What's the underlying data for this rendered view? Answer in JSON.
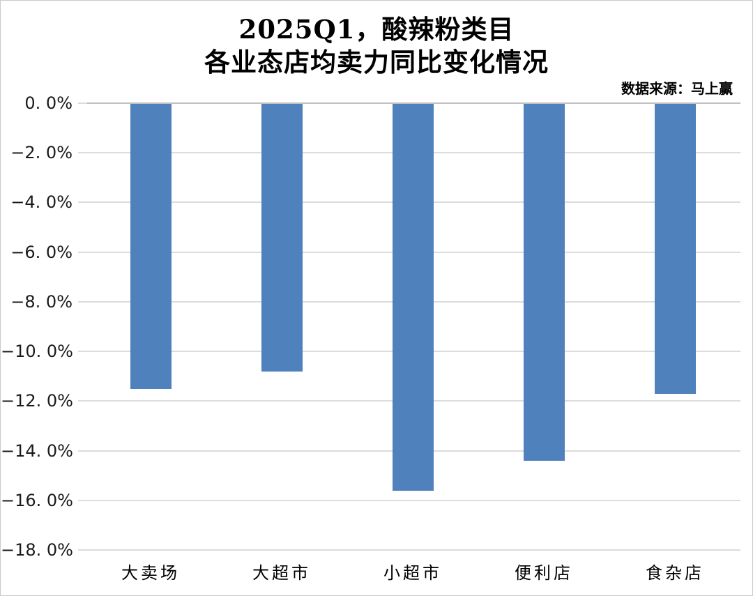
{
  "chart_data": {
    "type": "bar",
    "title_line1": "2025Q1，酸辣粉类目",
    "title_line2": "各业态店均卖力同比变化情况",
    "source_note": "数据来源：马上赢",
    "categories": [
      "大卖场",
      "大超市",
      "小超市",
      "便利店",
      "食杂店"
    ],
    "values": [
      -11.5,
      -10.8,
      -15.6,
      -14.4,
      -11.7
    ],
    "value_unit": "%",
    "ylabel": "",
    "xlabel": "",
    "ylim": [
      -18,
      0
    ],
    "ytick_step": 2,
    "yticks": [
      {
        "value": 0,
        "label": "0. 0%"
      },
      {
        "value": -2,
        "label": "−2. 0%"
      },
      {
        "value": -4,
        "label": "−4. 0%"
      },
      {
        "value": -6,
        "label": "−6. 0%"
      },
      {
        "value": -8,
        "label": "−8. 0%"
      },
      {
        "value": -10,
        "label": "−10. 0%"
      },
      {
        "value": -12,
        "label": "−12. 0%"
      },
      {
        "value": -14,
        "label": "−14. 0%"
      },
      {
        "value": -16,
        "label": "−16. 0%"
      },
      {
        "value": -18,
        "label": "−18. 0%"
      }
    ],
    "grid": true,
    "legend_position": "none",
    "bar_color": "#4F81BD",
    "gridline_color": "#dcdcdc",
    "axis_line_color": "#c0c0c0",
    "title_color": "#000000",
    "tick_label_color": "#1a1a1a"
  }
}
